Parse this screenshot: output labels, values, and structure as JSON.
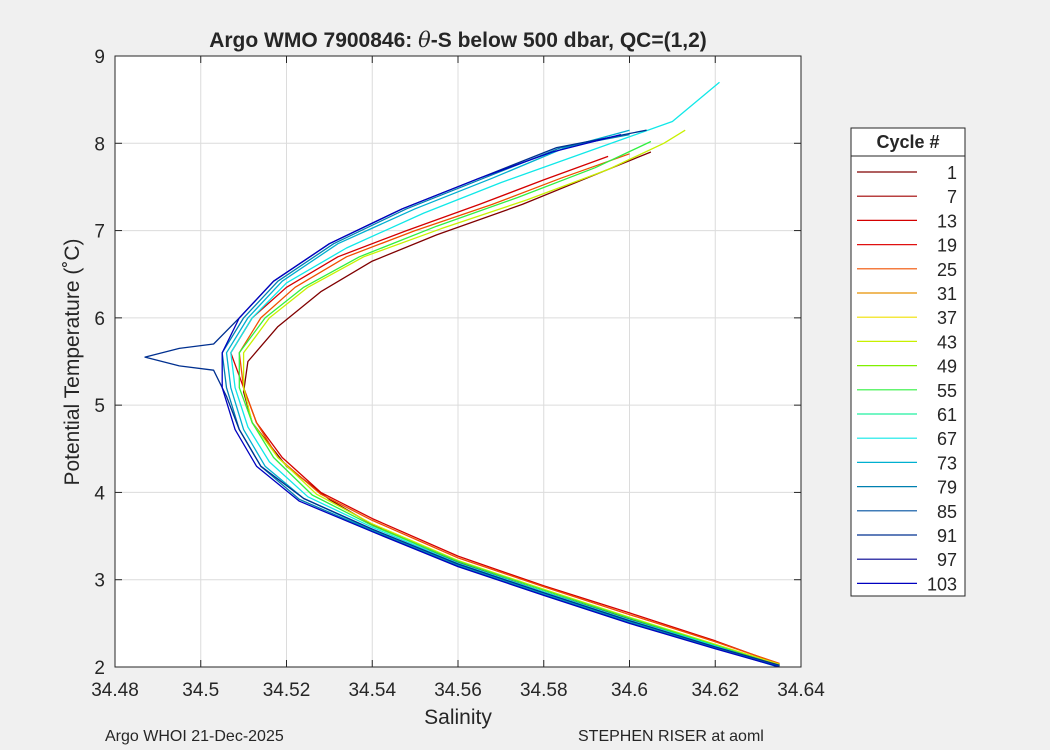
{
  "footer": {
    "left": "Argo WHOI 21-Dec-2025",
    "right": "STEPHEN RISER at aoml"
  },
  "chart_data": {
    "type": "line",
    "title_prefix": "Argo WMO 7900846: ",
    "title_theta": "θ",
    "title_suffix": "-S below 500 dbar,  QC=(1,2)",
    "xlabel": "Salinity",
    "ylabel": "Potential Temperature (˚C)",
    "xlim": [
      34.48,
      34.64
    ],
    "ylim": [
      2,
      9
    ],
    "xticks": [
      34.48,
      34.5,
      34.52,
      34.54,
      34.56,
      34.58,
      34.6,
      34.62,
      34.64
    ],
    "xtick_labels": [
      "34.48",
      "34.5",
      "34.52",
      "34.54",
      "34.56",
      "34.58",
      "34.6",
      "34.62",
      "34.64"
    ],
    "yticks": [
      2,
      3,
      4,
      5,
      6,
      7,
      8,
      9
    ],
    "ytick_labels": [
      "2",
      "3",
      "4",
      "5",
      "6",
      "7",
      "8",
      "9"
    ],
    "grid": true,
    "legend": {
      "title": "Cycle #",
      "placement": "outside-right",
      "entries": [
        "1",
        "7",
        "13",
        "19",
        "25",
        "31",
        "37",
        "43",
        "49",
        "55",
        "61",
        "67",
        "73",
        "79",
        "85",
        "91",
        "97",
        "103"
      ],
      "colors": [
        "#800000",
        "#a00000",
        "#d40000",
        "#e01010",
        "#f05000",
        "#e89000",
        "#f0e000",
        "#c8f000",
        "#80f000",
        "#30f040",
        "#20f0a0",
        "#10e8e8",
        "#00b0d0",
        "#0080b0",
        "#0050a0",
        "#003090",
        "#000090",
        "#0000c0"
      ]
    },
    "series": [
      {
        "name": "1",
        "color": "#800000",
        "points": [
          [
            34.635,
            2.02
          ],
          [
            34.62,
            2.25
          ],
          [
            34.6,
            2.55
          ],
          [
            34.58,
            2.86
          ],
          [
            34.56,
            3.2
          ],
          [
            34.54,
            3.63
          ],
          [
            34.53,
            3.92
          ],
          [
            34.52,
            4.3
          ],
          [
            34.512,
            4.8
          ],
          [
            34.51,
            5.15
          ],
          [
            34.511,
            5.5
          ],
          [
            34.518,
            5.9
          ],
          [
            34.528,
            6.3
          ],
          [
            34.54,
            6.65
          ],
          [
            34.555,
            6.95
          ],
          [
            34.575,
            7.3
          ],
          [
            34.59,
            7.6
          ],
          [
            34.605,
            7.9
          ]
        ]
      },
      {
        "name": "13",
        "color": "#d40000",
        "points": [
          [
            34.634,
            2.05
          ],
          [
            34.62,
            2.3
          ],
          [
            34.6,
            2.62
          ],
          [
            34.58,
            2.93
          ],
          [
            34.56,
            3.27
          ],
          [
            34.54,
            3.7
          ],
          [
            34.528,
            4.0
          ],
          [
            34.519,
            4.4
          ],
          [
            34.513,
            4.8
          ],
          [
            34.51,
            5.2
          ],
          [
            34.507,
            5.6
          ],
          [
            34.512,
            6.0
          ],
          [
            34.52,
            6.35
          ],
          [
            34.532,
            6.7
          ],
          [
            34.548,
            7.0
          ],
          [
            34.565,
            7.3
          ],
          [
            34.58,
            7.58
          ],
          [
            34.595,
            7.85
          ]
        ]
      },
      {
        "name": "25",
        "color": "#f05000",
        "points": [
          [
            34.635,
            2.04
          ],
          [
            34.62,
            2.29
          ],
          [
            34.6,
            2.6
          ],
          [
            34.58,
            2.92
          ],
          [
            34.56,
            3.25
          ],
          [
            34.54,
            3.68
          ],
          [
            34.528,
            3.98
          ],
          [
            34.518,
            4.4
          ],
          [
            34.513,
            4.8
          ],
          [
            34.51,
            5.2
          ],
          [
            34.509,
            5.6
          ],
          [
            34.514,
            6.0
          ],
          [
            34.522,
            6.35
          ],
          [
            34.534,
            6.7
          ],
          [
            34.55,
            7.0
          ],
          [
            34.568,
            7.3
          ],
          [
            34.584,
            7.6
          ],
          [
            34.6,
            7.88
          ]
        ]
      },
      {
        "name": "43",
        "color": "#c8f000",
        "points": [
          [
            34.635,
            2.03
          ],
          [
            34.62,
            2.26
          ],
          [
            34.6,
            2.57
          ],
          [
            34.58,
            2.89
          ],
          [
            34.56,
            3.22
          ],
          [
            34.54,
            3.64
          ],
          [
            34.527,
            3.98
          ],
          [
            34.518,
            4.4
          ],
          [
            34.512,
            4.8
          ],
          [
            34.51,
            5.2
          ],
          [
            34.51,
            5.6
          ],
          [
            34.516,
            6.0
          ],
          [
            34.525,
            6.35
          ],
          [
            34.538,
            6.7
          ],
          [
            34.556,
            7.02
          ],
          [
            34.576,
            7.35
          ],
          [
            34.595,
            7.7
          ],
          [
            34.608,
            8.0
          ],
          [
            34.613,
            8.15
          ]
        ]
      },
      {
        "name": "55",
        "color": "#30f040",
        "points": [
          [
            34.634,
            2.03
          ],
          [
            34.62,
            2.25
          ],
          [
            34.6,
            2.56
          ],
          [
            34.58,
            2.88
          ],
          [
            34.56,
            3.21
          ],
          [
            34.54,
            3.62
          ],
          [
            34.526,
            3.97
          ],
          [
            34.517,
            4.4
          ],
          [
            34.512,
            4.8
          ],
          [
            34.509,
            5.2
          ],
          [
            34.509,
            5.6
          ],
          [
            34.515,
            6.0
          ],
          [
            34.524,
            6.35
          ],
          [
            34.537,
            6.7
          ],
          [
            34.555,
            7.05
          ],
          [
            34.574,
            7.38
          ],
          [
            34.592,
            7.72
          ],
          [
            34.605,
            8.02
          ]
        ]
      },
      {
        "name": "67",
        "color": "#10e8e8",
        "points": [
          [
            34.634,
            2.02
          ],
          [
            34.62,
            2.24
          ],
          [
            34.6,
            2.54
          ],
          [
            34.58,
            2.86
          ],
          [
            34.56,
            3.19
          ],
          [
            34.54,
            3.6
          ],
          [
            34.525,
            3.95
          ],
          [
            34.516,
            4.35
          ],
          [
            34.511,
            4.75
          ],
          [
            34.508,
            5.2
          ],
          [
            34.507,
            5.6
          ],
          [
            34.512,
            6.0
          ],
          [
            34.52,
            6.4
          ],
          [
            34.534,
            6.8
          ],
          [
            34.552,
            7.2
          ],
          [
            34.57,
            7.55
          ],
          [
            34.59,
            7.9
          ],
          [
            34.61,
            8.25
          ],
          [
            34.621,
            8.7
          ]
        ]
      },
      {
        "name": "73",
        "color": "#00b0d0",
        "points": [
          [
            34.634,
            2.01
          ],
          [
            34.62,
            2.22
          ],
          [
            34.6,
            2.52
          ],
          [
            34.58,
            2.84
          ],
          [
            34.56,
            3.17
          ],
          [
            34.54,
            3.57
          ],
          [
            34.524,
            3.93
          ],
          [
            34.515,
            4.3
          ],
          [
            34.51,
            4.72
          ],
          [
            34.507,
            5.2
          ],
          [
            34.506,
            5.6
          ],
          [
            34.511,
            6.0
          ],
          [
            34.519,
            6.42
          ],
          [
            34.532,
            6.85
          ],
          [
            34.55,
            7.25
          ],
          [
            34.568,
            7.6
          ],
          [
            34.585,
            7.95
          ],
          [
            34.6,
            8.15
          ]
        ]
      },
      {
        "name": "79",
        "color": "#0080b0",
        "points": [
          [
            34.635,
            2.01
          ],
          [
            34.62,
            2.22
          ],
          [
            34.6,
            2.51
          ],
          [
            34.58,
            2.83
          ],
          [
            34.56,
            3.16
          ],
          [
            34.54,
            3.56
          ],
          [
            34.523,
            3.92
          ],
          [
            34.514,
            4.3
          ],
          [
            34.509,
            4.72
          ],
          [
            34.506,
            5.2
          ],
          [
            34.505,
            5.6
          ],
          [
            34.51,
            6.0
          ],
          [
            34.518,
            6.42
          ],
          [
            34.531,
            6.85
          ],
          [
            34.548,
            7.25
          ],
          [
            34.566,
            7.6
          ],
          [
            34.584,
            7.95
          ],
          [
            34.6,
            8.1
          ]
        ]
      },
      {
        "name": "91",
        "color": "#003090",
        "points": [
          [
            34.635,
            2.02
          ],
          [
            34.62,
            2.23
          ],
          [
            34.6,
            2.53
          ],
          [
            34.58,
            2.85
          ],
          [
            34.56,
            3.18
          ],
          [
            34.54,
            3.58
          ],
          [
            34.524,
            3.93
          ],
          [
            34.514,
            4.3
          ],
          [
            34.509,
            4.72
          ],
          [
            34.506,
            5.1
          ],
          [
            34.503,
            5.4
          ],
          [
            34.495,
            5.45
          ],
          [
            34.487,
            5.55
          ],
          [
            34.495,
            5.65
          ],
          [
            34.503,
            5.7
          ],
          [
            34.509,
            6.0
          ],
          [
            34.517,
            6.42
          ],
          [
            34.53,
            6.85
          ],
          [
            34.547,
            7.25
          ],
          [
            34.565,
            7.6
          ],
          [
            34.583,
            7.95
          ],
          [
            34.604,
            8.15
          ]
        ]
      },
      {
        "name": "103",
        "color": "#0000c0",
        "points": [
          [
            34.635,
            2.0
          ],
          [
            34.62,
            2.21
          ],
          [
            34.6,
            2.5
          ],
          [
            34.58,
            2.82
          ],
          [
            34.56,
            3.15
          ],
          [
            34.54,
            3.55
          ],
          [
            34.523,
            3.9
          ],
          [
            34.513,
            4.3
          ],
          [
            34.508,
            4.72
          ],
          [
            34.505,
            5.2
          ],
          [
            34.505,
            5.6
          ],
          [
            34.509,
            6.0
          ],
          [
            34.517,
            6.42
          ],
          [
            34.53,
            6.85
          ],
          [
            34.547,
            7.25
          ],
          [
            34.565,
            7.6
          ],
          [
            34.582,
            7.9
          ],
          [
            34.598,
            8.1
          ]
        ]
      }
    ]
  }
}
